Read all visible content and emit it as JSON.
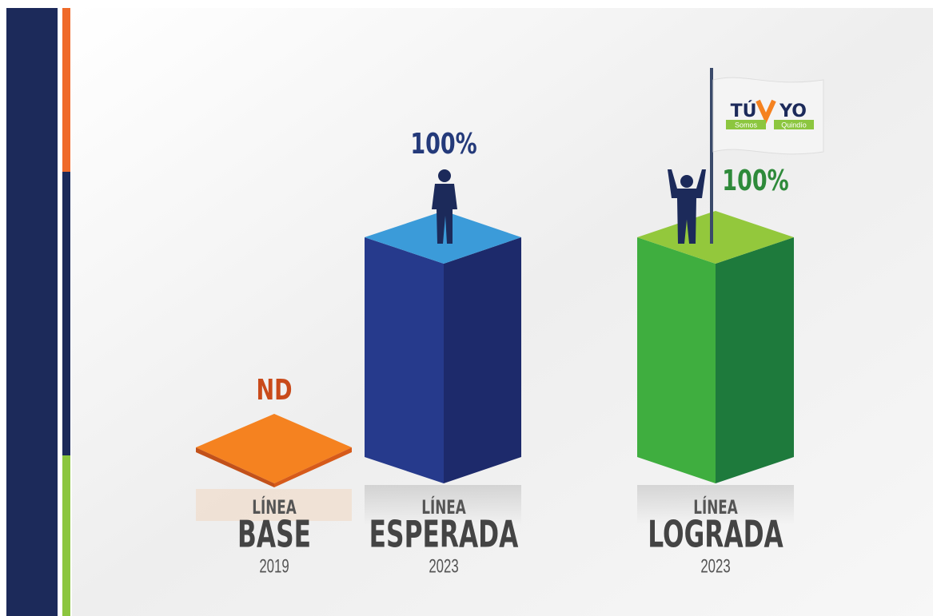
{
  "columns": [
    {
      "value_label": "ND",
      "line": "LÍNEA",
      "name": "BASE",
      "year": "2019"
    },
    {
      "value_label": "100%",
      "line": "LÍNEA",
      "name": "ESPERADA",
      "year": "2023"
    },
    {
      "value_label": "100%",
      "line": "LÍNEA",
      "name": "LOGRADA",
      "year": "2023"
    }
  ],
  "logo": {
    "left": "TÚ",
    "right": "YO",
    "sub_left": "Somos",
    "sub_right": "Quindío"
  }
}
